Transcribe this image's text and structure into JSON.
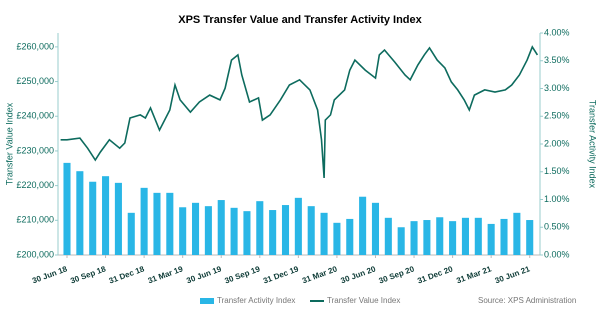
{
  "chart_data": {
    "type": "combo",
    "title": "XPS Transfer Value and Transfer Activity Index",
    "y_label": "Transfer Value Index",
    "y2_label": "Transfer Activity Index",
    "source": "Source: XPS Administration",
    "xlim": [
      -0.7,
      36.8
    ],
    "xticks": [
      {
        "value": 0,
        "label": "30 Jun 18"
      },
      {
        "value": 3,
        "label": "30 Sep 18"
      },
      {
        "value": 6,
        "label": "31 Dec 18"
      },
      {
        "value": 9,
        "label": "31 Mar 19"
      },
      {
        "value": 12,
        "label": "30 Jun 19"
      },
      {
        "value": 15,
        "label": "30 Sep 19"
      },
      {
        "value": 18,
        "label": "31 Dec 19"
      },
      {
        "value": 21,
        "label": "31 Mar 20"
      },
      {
        "value": 24,
        "label": "30 Jun 20"
      },
      {
        "value": 27,
        "label": "30 Sep 20"
      },
      {
        "value": 30,
        "label": "31 Dec 20"
      },
      {
        "value": 33,
        "label": "31 Mar 21"
      },
      {
        "value": 36,
        "label": "30 Jun 21"
      }
    ],
    "ylim": [
      200000,
      264000
    ],
    "yticks": [
      {
        "value": 200000,
        "label": "£200,000"
      },
      {
        "value": 210000,
        "label": "£210,000"
      },
      {
        "value": 220000,
        "label": "£220,000"
      },
      {
        "value": 230000,
        "label": "£230,000"
      },
      {
        "value": 240000,
        "label": "£240,000"
      },
      {
        "value": 250000,
        "label": "£250,000"
      },
      {
        "value": 260000,
        "label": "£260,000"
      }
    ],
    "y2lim": [
      0,
      4
    ],
    "y2ticks": [
      {
        "value": 0,
        "label": "0.00%"
      },
      {
        "value": 0.5,
        "label": "0.50%"
      },
      {
        "value": 1,
        "label": "1.00%"
      },
      {
        "value": 1.5,
        "label": "1.50%"
      },
      {
        "value": 2,
        "label": "2.00%"
      },
      {
        "value": 2.5,
        "label": "2.50%"
      },
      {
        "value": 3,
        "label": "3.00%"
      },
      {
        "value": 3.5,
        "label": "3.50%"
      },
      {
        "value": 4,
        "label": "4.00%"
      }
    ],
    "series": [
      {
        "name": "Transfer Activity Index",
        "type": "bar",
        "axis": "y2",
        "color": "#29b6e6",
        "x": [
          0,
          1,
          2,
          3,
          4,
          5,
          6,
          7,
          8,
          9,
          10,
          11,
          12,
          13,
          14,
          15,
          16,
          17,
          18,
          19,
          20,
          21,
          22,
          23,
          24,
          25,
          26,
          27,
          28,
          29,
          30,
          31,
          32,
          33,
          34,
          35,
          36
        ],
        "values": [
          1.66,
          1.51,
          1.32,
          1.42,
          1.3,
          0.76,
          1.21,
          1.12,
          1.12,
          0.86,
          0.94,
          0.88,
          0.99,
          0.85,
          0.79,
          0.97,
          0.81,
          0.9,
          1.03,
          0.88,
          0.76,
          0.58,
          0.65,
          1.05,
          0.94,
          0.67,
          0.5,
          0.61,
          0.63,
          0.68,
          0.61,
          0.67,
          0.67,
          0.56,
          0.65,
          0.76,
          0.63
        ]
      },
      {
        "name": "Transfer Value Index",
        "type": "line",
        "color": "#0d6b5e",
        "x": [
          -0.5,
          0,
          1,
          1.6,
          2.2,
          2.6,
          3.3,
          4.1,
          4.5,
          4.9,
          5.7,
          6.1,
          6.5,
          7.2,
          8,
          8.4,
          8.8,
          9.6,
          10.3,
          11.1,
          11.9,
          12.3,
          12.8,
          13.3,
          13.6,
          14.2,
          14.9,
          15.2,
          15.8,
          16.6,
          17.3,
          18.1,
          18.9,
          19.5,
          19.8,
          20,
          20.1,
          20.5,
          20.8,
          21.6,
          22,
          22.4,
          23.2,
          24,
          24.3,
          24.7,
          25.5,
          26.3,
          26.7,
          27.3,
          27.8,
          28.2,
          28.8,
          29.4,
          29.9,
          30.4,
          30.9,
          31.3,
          31.7,
          32.5,
          33.3,
          34.1,
          34.6,
          35.2,
          35.8,
          36.2,
          36.6
        ],
        "values": [
          233200,
          233200,
          233700,
          230800,
          227400,
          229700,
          233200,
          230800,
          232300,
          239500,
          240400,
          239500,
          242400,
          236000,
          241800,
          249000,
          244700,
          241200,
          244100,
          246100,
          244700,
          248100,
          256200,
          257700,
          251900,
          244100,
          245300,
          238900,
          240400,
          244700,
          249000,
          250500,
          247600,
          241800,
          233200,
          222200,
          238900,
          240400,
          244700,
          247600,
          253300,
          256200,
          253300,
          251000,
          257700,
          259100,
          255600,
          251900,
          250500,
          254800,
          257700,
          259700,
          256200,
          253900,
          249900,
          247600,
          244700,
          241800,
          246100,
          247600,
          247000,
          247600,
          249000,
          251900,
          256200,
          260000,
          257700
        ]
      }
    ]
  }
}
